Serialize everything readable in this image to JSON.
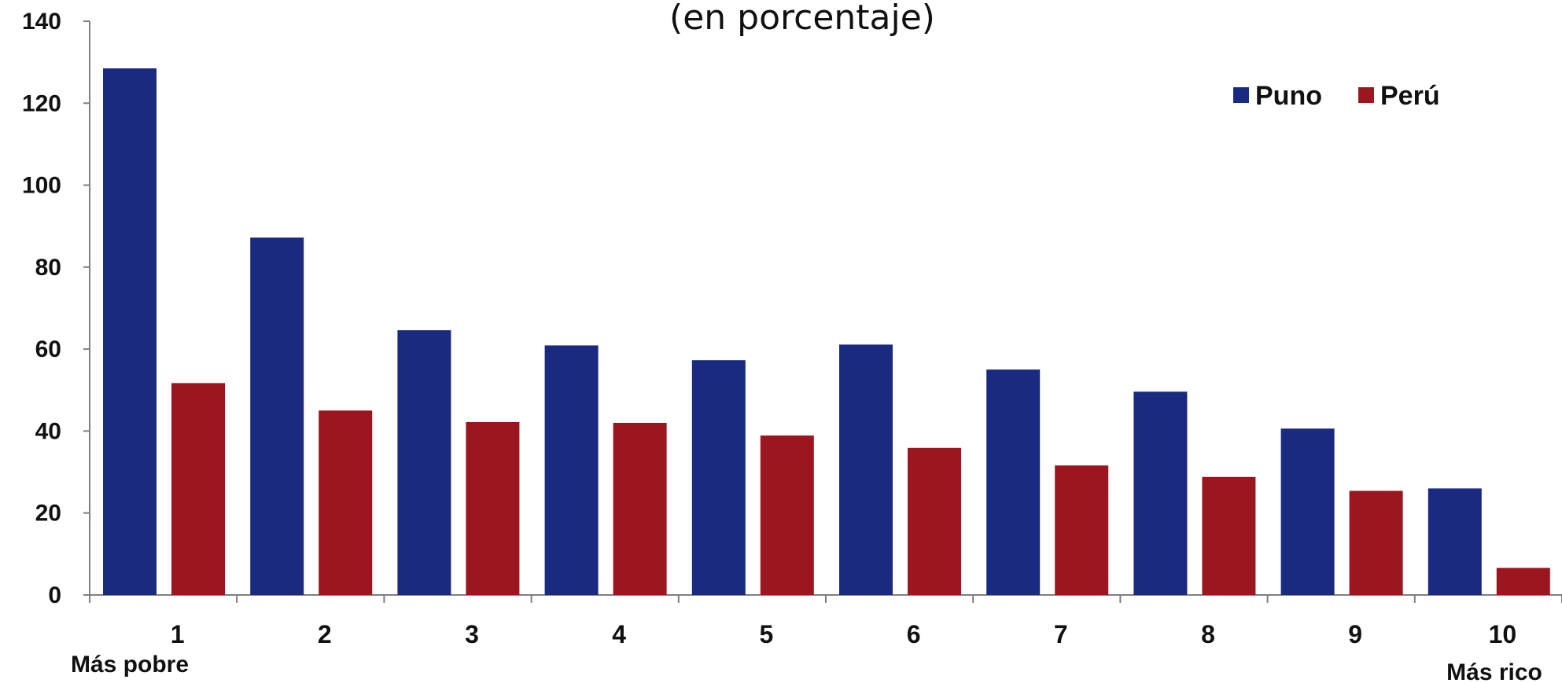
{
  "chart_data": {
    "type": "bar",
    "subtitle": "(en porcentaje)",
    "categories": [
      "1",
      "2",
      "3",
      "4",
      "5",
      "6",
      "7",
      "8",
      "9",
      "10"
    ],
    "category_notes": {
      "first": "Más pobre",
      "last": "Más rico"
    },
    "series": [
      {
        "name": "Puno",
        "color": "#1a2a80",
        "values": [
          128.5,
          87.2,
          64.6,
          60.9,
          57.3,
          61.1,
          55.0,
          49.6,
          40.6,
          26.0
        ]
      },
      {
        "name": "Perú",
        "color": "#9c161f",
        "values": [
          51.7,
          45.0,
          42.2,
          42.0,
          38.9,
          35.9,
          31.6,
          28.8,
          25.4,
          6.6
        ]
      }
    ],
    "ylim": [
      0,
      140
    ],
    "yticks": [
      0,
      20,
      40,
      60,
      80,
      100,
      120,
      140
    ],
    "grid": false,
    "legend_position": "top-right"
  }
}
